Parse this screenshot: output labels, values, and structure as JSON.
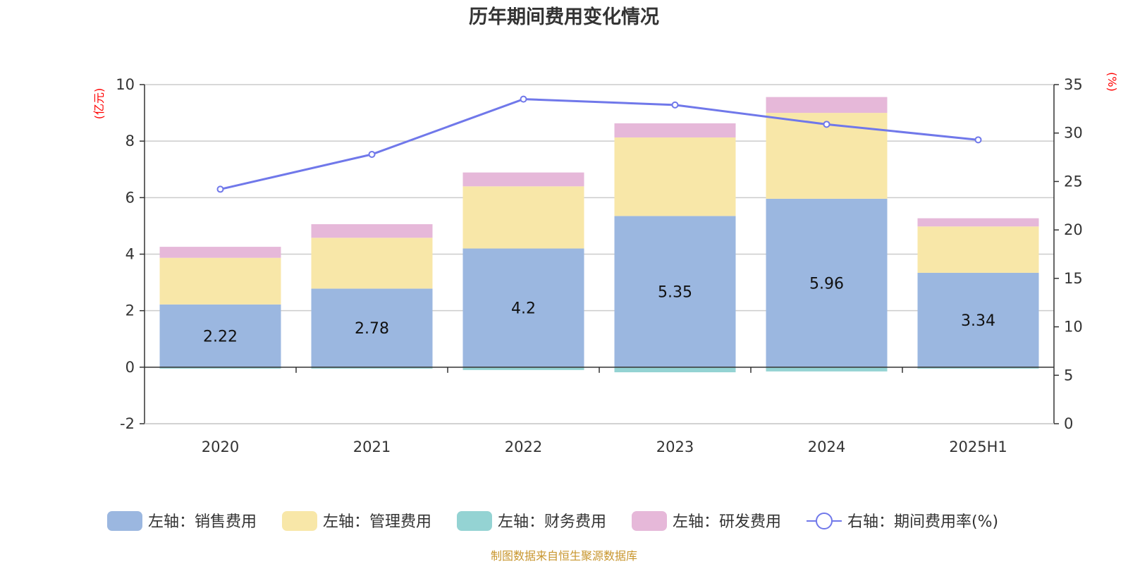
{
  "chart_data": {
    "type": "bar",
    "title": "历年期间费用变化情况",
    "categories": [
      "2020",
      "2021",
      "2022",
      "2023",
      "2024",
      "2025H1"
    ],
    "left_axis": {
      "unit": "(亿元)",
      "ylim": [
        -2,
        10
      ],
      "ticks": [
        "10",
        "8",
        "6",
        "4",
        "2",
        "0",
        "-2"
      ]
    },
    "right_axis": {
      "unit": "(%)",
      "ylim": [
        0,
        35
      ],
      "ticks": [
        "35",
        "30",
        "25",
        "20",
        "15",
        "10",
        "5",
        "0"
      ]
    },
    "series": [
      {
        "name": "左轴：销售费用",
        "kind": "stacked-bar",
        "axis": "left",
        "color": "#9bb7e0",
        "values": [
          2.22,
          2.78,
          4.2,
          5.35,
          5.96,
          3.34
        ],
        "labels": [
          "2.22",
          "2.78",
          "4.2",
          "5.35",
          "5.96",
          "3.34"
        ]
      },
      {
        "name": "左轴：管理费用",
        "kind": "stacked-bar",
        "axis": "left",
        "color": "#f8e7a8",
        "values": [
          1.65,
          1.8,
          2.2,
          2.78,
          3.04,
          1.64
        ]
      },
      {
        "name": "左轴：财务费用",
        "kind": "stacked-bar",
        "axis": "left",
        "color": "#94d3d3",
        "values": [
          -0.05,
          -0.05,
          -0.1,
          -0.18,
          -0.15,
          -0.05
        ]
      },
      {
        "name": "左轴：研发费用",
        "kind": "stacked-bar",
        "axis": "left",
        "color": "#e6b8d9",
        "values": [
          0.39,
          0.48,
          0.49,
          0.5,
          0.56,
          0.29
        ]
      },
      {
        "name": "右轴：期间费用率(%)",
        "kind": "line",
        "axis": "right",
        "color": "#7078ea",
        "values": [
          24.2,
          27.8,
          33.5,
          32.9,
          30.9,
          29.3
        ]
      }
    ],
    "grid": true,
    "legend_position": "bottom"
  },
  "footer": {
    "source": "制图数据来自恒生聚源数据库"
  }
}
